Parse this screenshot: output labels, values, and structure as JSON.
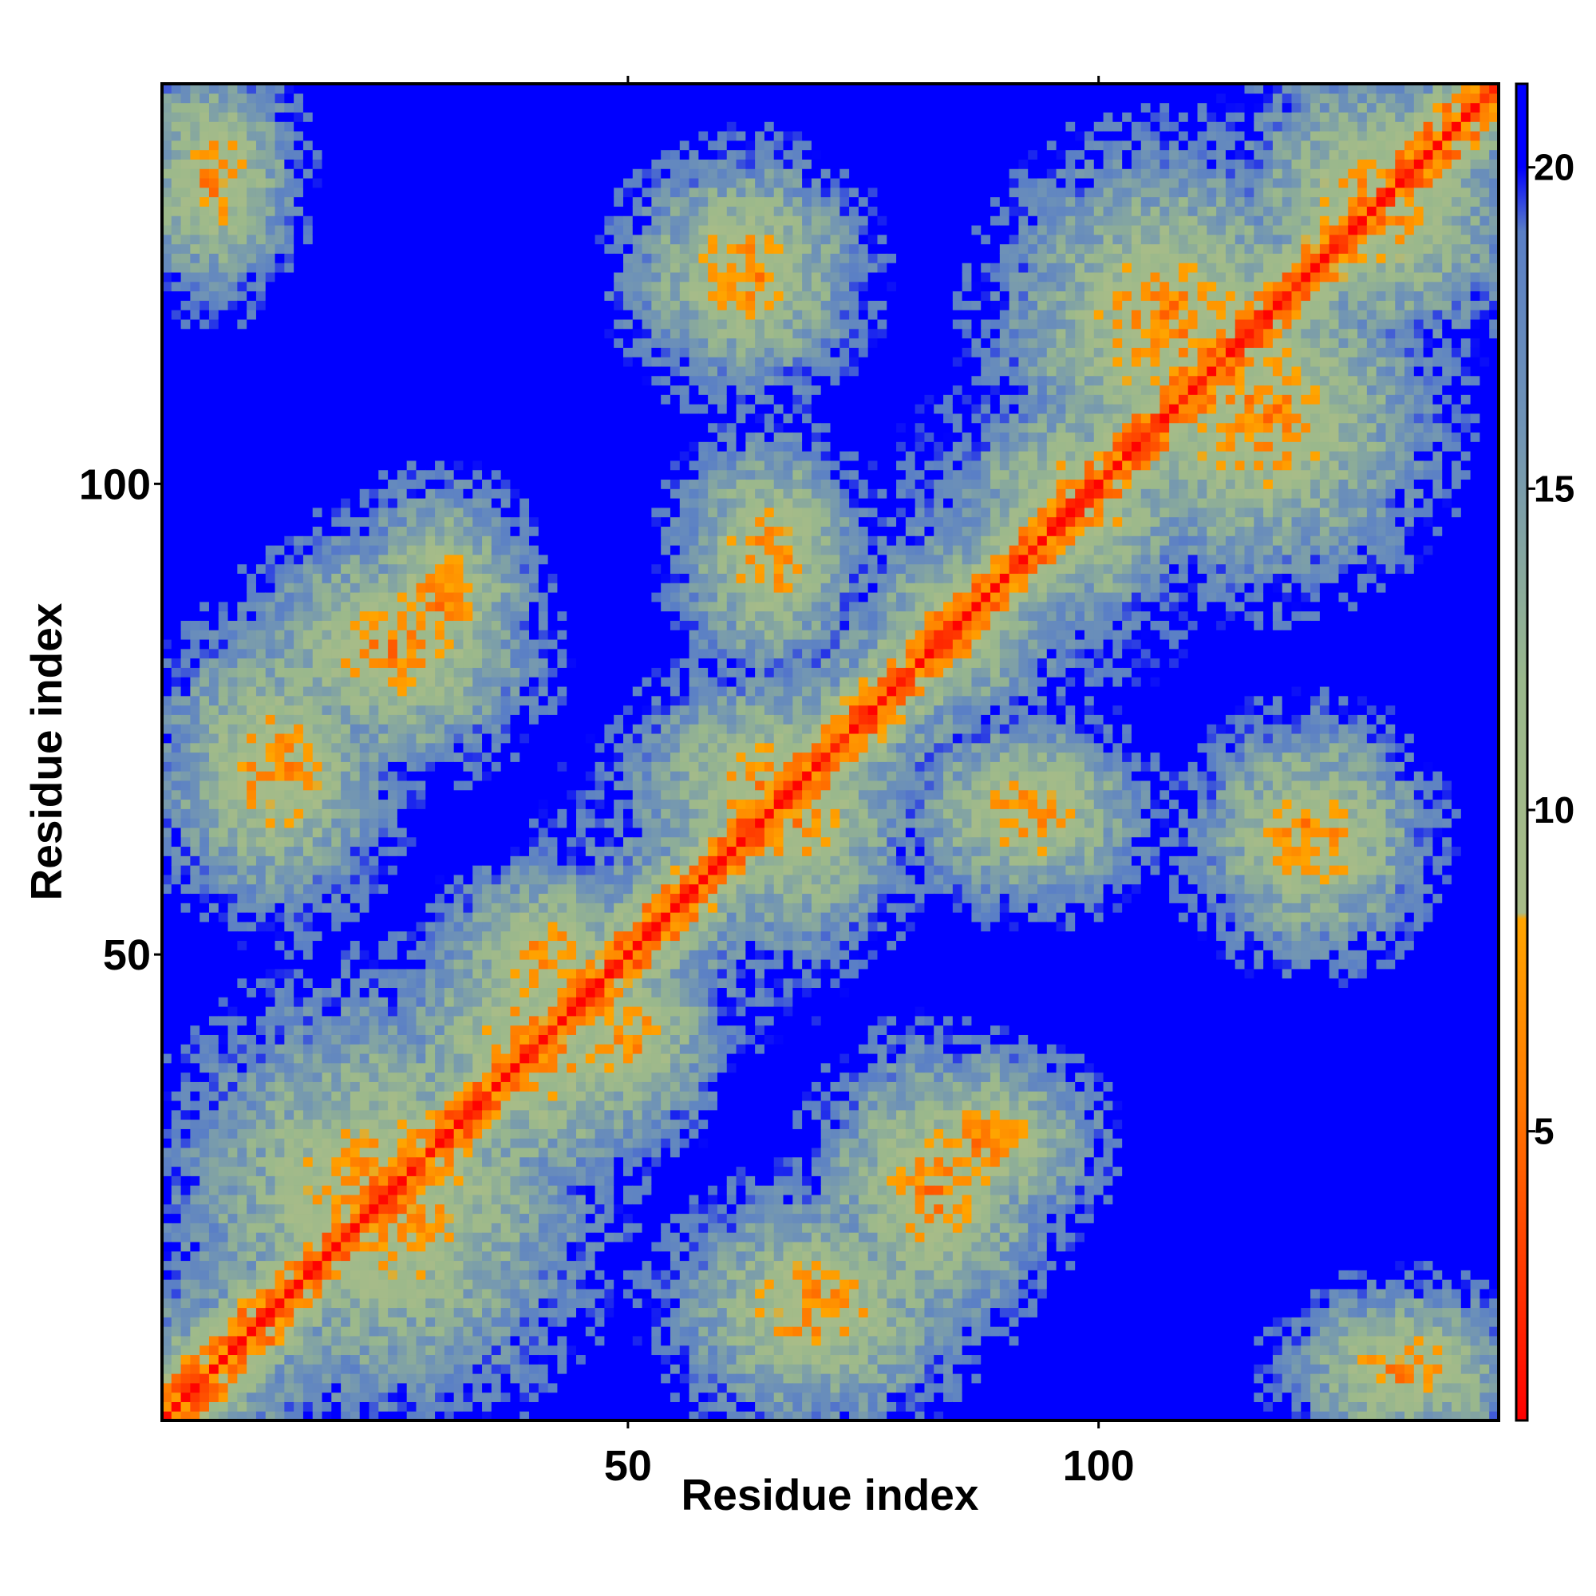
{
  "chart_data": {
    "type": "heatmap",
    "title": "",
    "xlabel": "Residue index",
    "ylabel": "Residue index",
    "n_residues": 142,
    "xlim": [
      1,
      142
    ],
    "ylim": [
      1,
      142
    ],
    "x_ticks": [
      50,
      100
    ],
    "y_ticks": [
      50,
      100
    ],
    "x_tick_labels": [
      "50",
      "100"
    ],
    "y_tick_labels": [
      "50",
      "100"
    ],
    "colorbar": {
      "range": [
        0.5,
        21.3
      ],
      "ticks": [
        5,
        10,
        15,
        20
      ],
      "tick_labels": [
        "5",
        "10",
        "15",
        "20"
      ],
      "stops": [
        {
          "value": 0.5,
          "color": "#ff0000"
        },
        {
          "value": 5.5,
          "color": "#ff7a00"
        },
        {
          "value": 8.3,
          "color": "#ffa500"
        },
        {
          "value": 8.4,
          "color": "#a8bc88"
        },
        {
          "value": 12.0,
          "color": "#9ab88c"
        },
        {
          "value": 16.0,
          "color": "#6f93b6"
        },
        {
          "value": 19.0,
          "color": "#5a7fc6"
        },
        {
          "value": 20.0,
          "color": "#0000ff"
        },
        {
          "value": 21.3,
          "color": "#0000ff"
        }
      ]
    },
    "matrix_description": "symmetric pairwise residue distance map (Angstrom), values capped at 20",
    "contact_blocks": [
      {
        "i": [
          1,
          8
        ],
        "j": [
          1,
          8
        ]
      },
      {
        "i": [
          8,
          40
        ],
        "j": [
          8,
          40
        ]
      },
      {
        "i": [
          30,
          50
        ],
        "j": [
          30,
          50
        ]
      },
      {
        "i": [
          5,
          20
        ],
        "j": [
          60,
          80
        ]
      },
      {
        "i": [
          25,
          35
        ],
        "j": [
          80,
          95
        ]
      },
      {
        "i": [
          35,
          48
        ],
        "j": [
          45,
          55
        ]
      },
      {
        "i": [
          55,
          75
        ],
        "j": [
          60,
          75
        ]
      },
      {
        "i": [
          60,
          70
        ],
        "j": [
          85,
          100
        ]
      },
      {
        "i": [
          75,
          90
        ],
        "j": [
          15,
          35
        ]
      },
      {
        "i": [
          80,
          90
        ],
        "j": [
          80,
          90
        ]
      },
      {
        "i": [
          90,
          105
        ],
        "j": [
          90,
          105
        ]
      },
      {
        "i": [
          95,
          120
        ],
        "j": [
          105,
          130
        ]
      },
      {
        "i": [
          115,
          130
        ],
        "j": [
          55,
          70
        ]
      },
      {
        "i": [
          120,
          140
        ],
        "j": [
          120,
          140
        ]
      },
      {
        "i": [
          125,
          140
        ],
        "j": [
          2,
          10
        ]
      }
    ]
  }
}
